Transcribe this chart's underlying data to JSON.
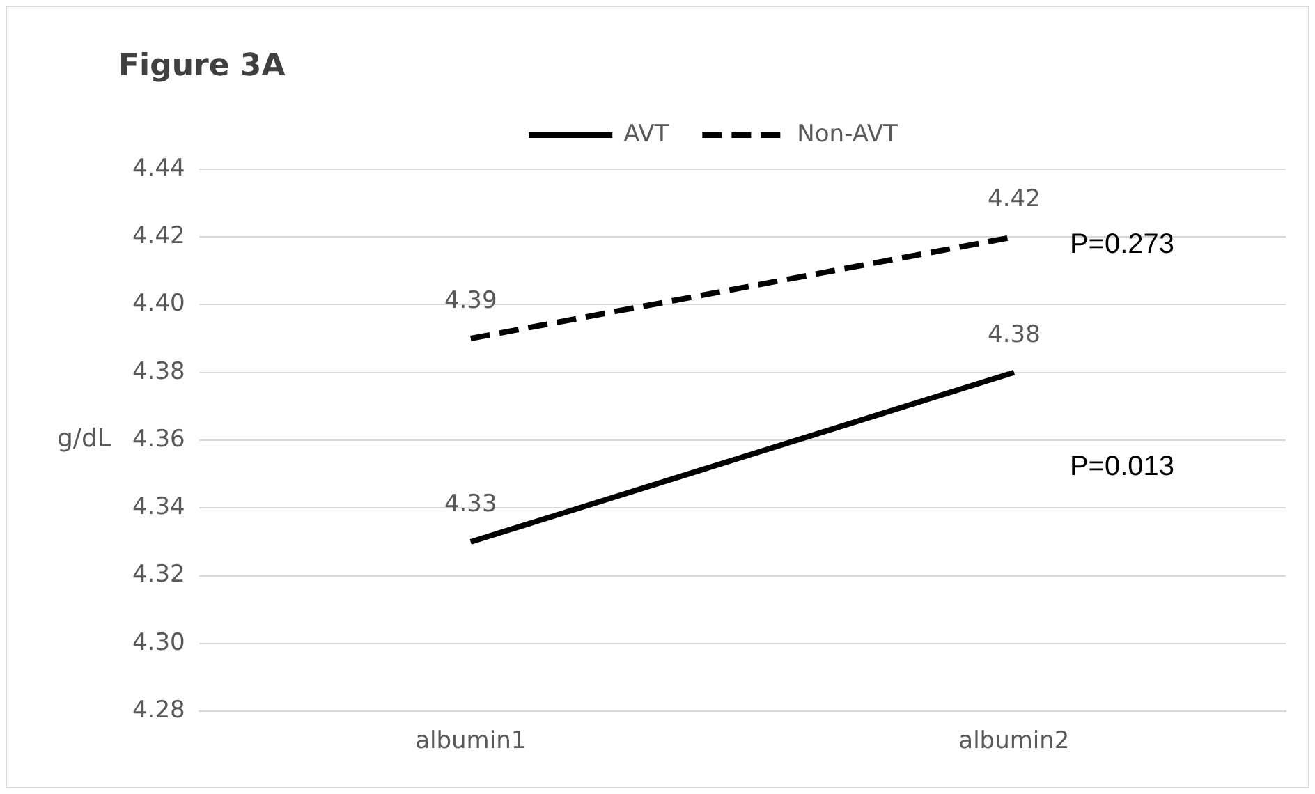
{
  "chart_data": {
    "type": "line",
    "title": "Figure 3A",
    "ylabel": "g/dL",
    "categories": [
      "albumin1",
      "albumin2"
    ],
    "series": [
      {
        "name": "AVT",
        "color": "#000000",
        "values": [
          4.33,
          4.38
        ],
        "line_style": "solid"
      },
      {
        "name": "Non-AVT",
        "color": "#000000",
        "values": [
          4.39,
          4.42
        ],
        "line_style": "dashed"
      }
    ],
    "ylim": [
      4.28,
      4.44
    ],
    "yticks": [
      {
        "value": 4.28,
        "label": "4.28"
      },
      {
        "value": 4.3,
        "label": "4.30"
      },
      {
        "value": 4.32,
        "label": "4.32"
      },
      {
        "value": 4.34,
        "label": "4.34"
      },
      {
        "value": 4.36,
        "label": "4.36"
      },
      {
        "value": 4.38,
        "label": "4.38"
      },
      {
        "value": 4.4,
        "label": "4.40"
      },
      {
        "value": 4.42,
        "label": "4.42"
      },
      {
        "value": 4.44,
        "label": "4.44"
      }
    ],
    "grid": "y",
    "legend": "top",
    "marker": "none",
    "data_labels": true,
    "annotations": [
      "P=0.273",
      "P=0.013"
    ]
  }
}
